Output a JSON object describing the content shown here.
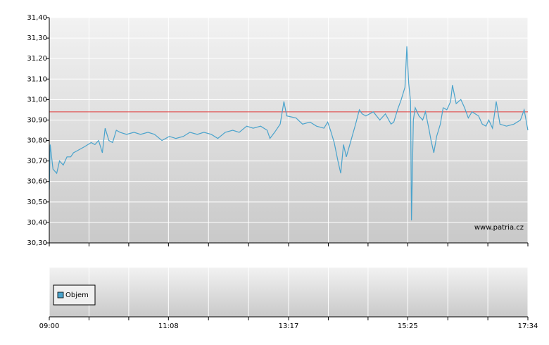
{
  "chart_data": [
    {
      "type": "line",
      "x": [
        "09:00",
        "09:01",
        "09:04",
        "09:08",
        "09:11",
        "09:15",
        "09:19",
        "09:23",
        "09:26",
        "09:30",
        "09:38",
        "09:45",
        "09:49",
        "09:53",
        "09:57",
        "10:00",
        "10:04",
        "10:08",
        "10:12",
        "10:16",
        "10:23",
        "10:31",
        "10:38",
        "10:46",
        "10:53",
        "11:01",
        "11:09",
        "11:16",
        "11:24",
        "11:31",
        "11:39",
        "11:46",
        "11:54",
        "12:01",
        "12:09",
        "12:17",
        "12:24",
        "12:32",
        "12:39",
        "12:47",
        "12:54",
        "12:57",
        "13:02",
        "13:08",
        "13:12",
        "13:15",
        "13:25",
        "13:32",
        "13:40",
        "13:47",
        "13:55",
        "13:59",
        "14:02",
        "14:06",
        "14:10",
        "14:13",
        "14:16",
        "14:19",
        "14:24",
        "14:29",
        "14:33",
        "14:36",
        "14:40",
        "14:48",
        "14:55",
        "15:01",
        "15:07",
        "15:10",
        "15:14",
        "15:18",
        "15:22",
        "15:24",
        "15:26",
        "15:28",
        "15:29",
        "15:31",
        "15:33",
        "15:37",
        "15:41",
        "15:44",
        "15:48",
        "15:50",
        "15:53",
        "15:56",
        "16:00",
        "16:03",
        "16:07",
        "16:11",
        "16:13",
        "16:17",
        "16:22",
        "16:26",
        "16:30",
        "16:34",
        "16:41",
        "16:45",
        "16:49",
        "16:52",
        "16:56",
        "17:00",
        "17:04",
        "17:11",
        "17:19",
        "17:26",
        "17:30",
        "17:34"
      ],
      "series": [
        {
          "color": "#4aa3cc",
          "values": [
            30.56,
            30.78,
            30.66,
            30.64,
            30.7,
            30.68,
            30.72,
            30.72,
            30.74,
            30.75,
            30.77,
            30.79,
            30.78,
            30.8,
            30.74,
            30.86,
            30.8,
            30.79,
            30.85,
            30.84,
            30.83,
            30.84,
            30.83,
            30.84,
            30.83,
            30.8,
            30.82,
            30.81,
            30.82,
            30.84,
            30.83,
            30.84,
            30.83,
            30.81,
            30.84,
            30.85,
            30.84,
            30.87,
            30.86,
            30.87,
            30.85,
            30.81,
            30.84,
            30.88,
            30.99,
            30.92,
            30.91,
            30.88,
            30.89,
            30.87,
            30.86,
            30.89,
            30.85,
            30.79,
            30.7,
            30.64,
            30.78,
            30.72,
            30.8,
            30.88,
            30.95,
            30.93,
            30.92,
            30.94,
            30.9,
            30.93,
            30.88,
            30.89,
            30.95,
            31.0,
            31.06,
            31.26,
            31.08,
            30.99,
            30.41,
            30.9,
            30.96,
            30.92,
            30.9,
            30.94,
            30.85,
            30.8,
            30.74,
            30.82,
            30.88,
            30.96,
            30.95,
            30.99,
            31.07,
            30.98,
            31.0,
            30.96,
            30.91,
            30.94,
            30.92,
            30.88,
            30.87,
            30.9,
            30.86,
            30.99,
            30.88,
            30.87,
            30.88,
            30.9,
            30.95,
            30.85
          ]
        }
      ],
      "reference_line": {
        "value": 30.94,
        "color": "#e03a3a"
      },
      "xlim": [
        "09:00",
        "17:34"
      ],
      "xticks": [
        "09:00",
        "11:08",
        "13:17",
        "15:25",
        "17:34"
      ],
      "ylim": [
        30.3,
        31.4
      ],
      "yticks": [
        {
          "value": 30.3,
          "label": "30,30"
        },
        {
          "value": 30.4,
          "label": "30,40"
        },
        {
          "value": 30.5,
          "label": "30,50"
        },
        {
          "value": 30.6,
          "label": "30,60"
        },
        {
          "value": 30.7,
          "label": "30,70"
        },
        {
          "value": 30.8,
          "label": "30,80"
        },
        {
          "value": 30.9,
          "label": "30,90"
        },
        {
          "value": 31.0,
          "label": "31,00"
        },
        {
          "value": 31.1,
          "label": "31,10"
        },
        {
          "value": 31.2,
          "label": "31,20"
        },
        {
          "value": 31.3,
          "label": "31,30"
        },
        {
          "value": 31.4,
          "label": "31,40"
        }
      ],
      "annotation": "www.patria.cz",
      "grid": true
    },
    {
      "type": "bar",
      "series": [
        {
          "name": "Objem",
          "color": "#4aa3cc"
        }
      ],
      "xlim": [
        "09:00",
        "17:34"
      ],
      "xticks": [
        "09:00",
        "11:08",
        "13:17",
        "15:25",
        "17:34"
      ],
      "grid": true
    }
  ]
}
